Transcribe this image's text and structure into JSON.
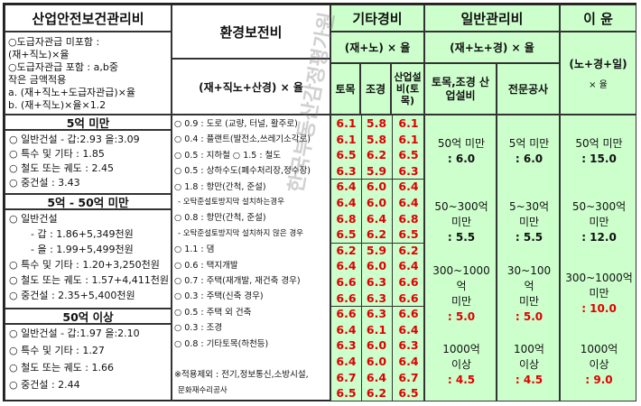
{
  "headers": {
    "safety": "산업안전보건관리비",
    "env": "환경보전비",
    "env_formula": "(재+직노+산경) × 율",
    "other": "기타경비",
    "other_formula": "(재+노) × 율",
    "other_cols": [
      "토목",
      "조경",
      "산업설비(토목)"
    ],
    "general": "일반관리비",
    "general_formula": "(재+노+경) × 율",
    "general_cols": [
      "토목,조경 산업설비",
      "전문공사"
    ],
    "profit": "이  윤",
    "profit_formula": "(노+경+일)",
    "profit_mult": "× 율"
  },
  "safety": {
    "intro": [
      "○도급자관급 미포함 :",
      "(재+직노)×율",
      "○도급자관급 포함 : a,b중",
      "작은 금액적용",
      "a. (재+직노+도급자관급)×율",
      "b. (재+직노)×율×1.2"
    ],
    "sections": [
      {
        "title": "5억 미만",
        "lines": [
          "○ 일반건설 - 갑:2.93 을:3.09",
          "○ 특수 및 기타 : 1.85",
          "○ 철도 또는 궤도 : 2.45",
          "○ 중건설 : 3.43"
        ]
      },
      {
        "title": "5억 - 50억 미만",
        "lines": [
          "○ 일반건설",
          "- 갑 : 1.86+5,349천원",
          "- 을 : 1.99+5,499천원",
          "○ 특수 및 기타 : 1.20+3,250천원",
          "○ 철도 또는 궤도 : 1.57+4,411천원",
          "○ 중건설 : 2.35+5,400천원"
        ]
      },
      {
        "title": "50억 이상",
        "lines": [
          "○ 일반건설 - 갑:1.97 을:2.10",
          "○ 특수 및 기타 : 1.27",
          "○ 철도 또는 궤도 : 1.66",
          "○ 중건설 : 2.44"
        ]
      }
    ]
  },
  "env_items": [
    "○ 0.9 : 도로 (교량, 터널, 활주로)",
    "○ 0.4 : 플랜트(발전소,쓰레기소각로)",
    "○ 0.5 : 지하철        ○ 1.5 : 철도",
    "○ 0.5 : 상하수도(폐수처리장,정수장)",
    "○ 1.8 : 항만(간척, 준설)",
    "   - 오탁준설토방지막 설치하는경우",
    "○ 0.8 : 항만(간척, 준설)",
    "   - 오탁준설토방지막 설치하지 않은 경우",
    "○ 1.1 : 댐",
    "○ 0.6 : 택지개발",
    "○ 0.7 : 주택(재개발, 재건축 경우)",
    "○ 0.3 : 주택(신축 경우)",
    "○ 0.5 : 주택 외 건축",
    "○ 0.3 : 조경",
    "○ 0.8 : 기타토목(하천등)",
    "",
    "※적용제외 : 전기,정보통신,소방시설,",
    "              문화재수리공사"
  ],
  "other_values": [
    [
      "6.1",
      "5.8",
      "6.1"
    ],
    [
      "6.1",
      "5.8",
      "6.1"
    ],
    [
      "6.5",
      "6.2",
      "6.5"
    ],
    [
      "6.3",
      "5.9",
      "6.3"
    ],
    [
      "6.4",
      "6.0",
      "6.4"
    ],
    [
      "6.4",
      "6.0",
      "6.4"
    ],
    [
      "6.8",
      "6.4",
      "6.8"
    ],
    [
      "6.5",
      "6.2",
      "6.5"
    ],
    [
      "6.2",
      "5.9",
      "6.2"
    ],
    [
      "6.4",
      "6.0",
      "6.4"
    ],
    [
      "6.6",
      "6.3",
      "6.6"
    ],
    [
      "6.6",
      "6.3",
      "6.6"
    ],
    [
      "6.6",
      "6.3",
      "6.6"
    ],
    [
      "6.4",
      "6.1",
      "6.4"
    ],
    [
      "6.3",
      "6.0",
      "6.3"
    ],
    [
      "6.4",
      "6.0",
      "6.4"
    ],
    [
      "6.7",
      "6.4",
      "6.7"
    ],
    [
      "6.5",
      "6.2",
      "6.5"
    ]
  ],
  "general_tiers": [
    {
      "a_label": [
        "50억 미만"
      ],
      "a_rate": ": 6.0",
      "b_label": [
        "5억 미만"
      ],
      "b_rate": ": 6.0"
    },
    {
      "a_label": [
        "50~300억",
        "미만"
      ],
      "a_rate": ": 5.5",
      "b_label": [
        "5~30억",
        "미만"
      ],
      "b_rate": ": 5.5"
    },
    {
      "a_label": [
        "300~1000",
        "억",
        "미만"
      ],
      "a_rate": ": 5.0",
      "b_label": [
        "30~100",
        "억",
        "미만"
      ],
      "b_rate": ": 5.0"
    },
    {
      "a_label": [
        "1000억",
        "이상"
      ],
      "a_rate": ": 4.5",
      "b_label": [
        "100억",
        "이상"
      ],
      "b_rate": ": 4.5"
    }
  ],
  "profit_tiers": [
    {
      "label": [
        "50억 미만"
      ],
      "rate": ": 15.0"
    },
    {
      "label": [
        "50~300억",
        "미만"
      ],
      "rate": ": 12.0"
    },
    {
      "label": [
        "300~1000억",
        "미만"
      ],
      "rate": ": 10.0"
    },
    {
      "label": [
        "1000억",
        "이상"
      ],
      "rate": ": 9.0"
    }
  ],
  "watermark": "한국부동산감정평가원"
}
